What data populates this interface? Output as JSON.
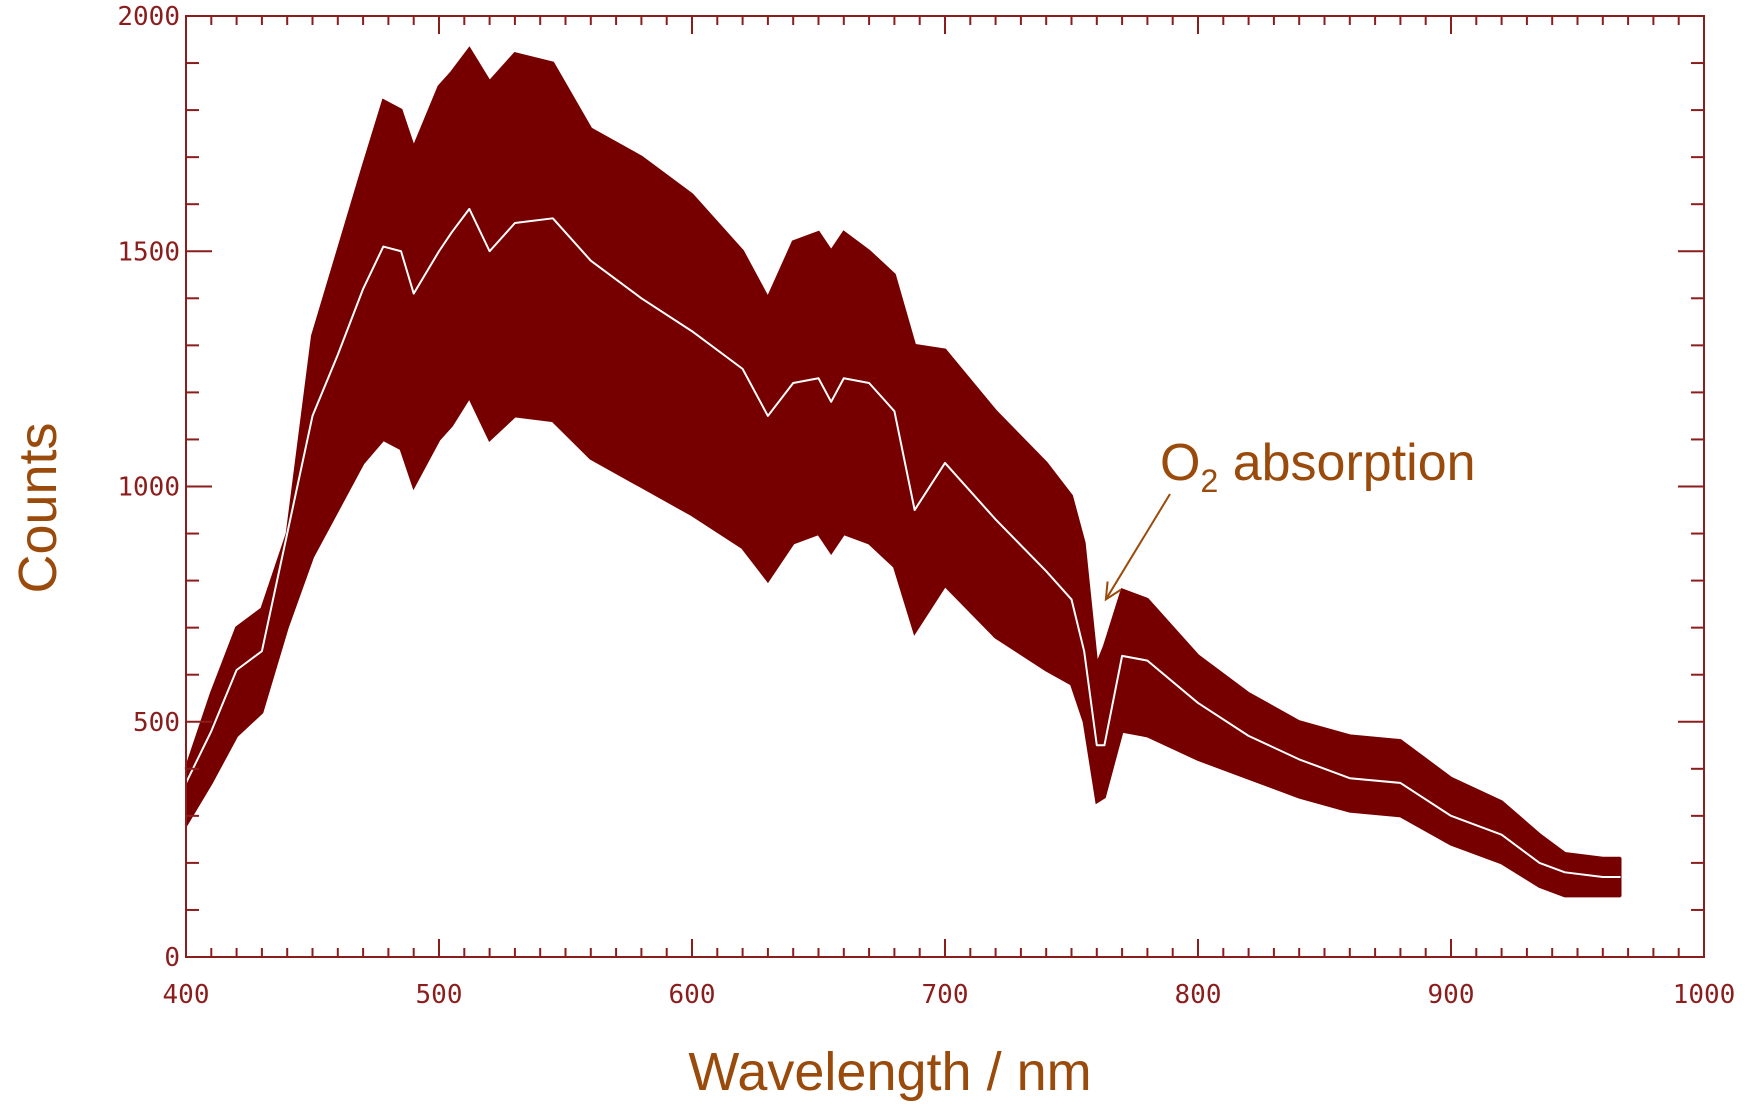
{
  "chart_data": {
    "type": "area",
    "title": "",
    "xlabel": "Wavelength / nm",
    "ylabel": "Counts",
    "xlim": [
      400,
      1000
    ],
    "ylim": [
      0,
      2000
    ],
    "x_ticks": [
      400,
      500,
      600,
      700,
      800,
      900,
      1000
    ],
    "y_ticks": [
      0,
      500,
      1000,
      1500,
      2000
    ],
    "x_tick_labels": [
      "400",
      "500",
      "600",
      "700",
      "800",
      "900",
      "1000"
    ],
    "y_tick_labels": [
      "0",
      "500",
      "1000",
      "1500",
      "2000"
    ],
    "x": [
      400,
      410,
      420,
      430,
      440,
      450,
      460,
      470,
      478,
      485,
      490,
      500,
      505,
      512,
      520,
      530,
      545,
      560,
      580,
      600,
      620,
      630,
      640,
      650,
      655,
      660,
      670,
      680,
      688,
      700,
      720,
      740,
      750,
      755,
      760,
      763,
      770,
      780,
      800,
      820,
      840,
      860,
      880,
      900,
      920,
      935,
      945,
      960,
      967
    ],
    "series": [
      {
        "values": [
          400,
          560,
          700,
          740,
          900,
          1320,
          1500,
          1680,
          1820,
          1800,
          1720,
          1850,
          1880,
          1930,
          1860,
          1920,
          1900,
          1760,
          1700,
          1620,
          1500,
          1400,
          1520,
          1540,
          1500,
          1540,
          1500,
          1450,
          1300,
          1290,
          1160,
          1050,
          980,
          880,
          620,
          660,
          780,
          760,
          640,
          560,
          500,
          470,
          460,
          380,
          330,
          260,
          220,
          210,
          210
        ]
      },
      {
        "values": [
          370,
          480,
          610,
          650,
          900,
          1150,
          1280,
          1420,
          1510,
          1500,
          1410,
          1500,
          1540,
          1590,
          1500,
          1560,
          1570,
          1480,
          1400,
          1330,
          1250,
          1150,
          1220,
          1230,
          1180,
          1230,
          1220,
          1160,
          950,
          1050,
          930,
          820,
          760,
          650,
          450,
          450,
          640,
          630,
          540,
          470,
          420,
          380,
          370,
          300,
          260,
          200,
          180,
          170,
          170
        ]
      },
      {
        "values": [
          280,
          370,
          470,
          520,
          700,
          850,
          950,
          1050,
          1100,
          1080,
          1000,
          1100,
          1130,
          1190,
          1100,
          1150,
          1140,
          1060,
          1000,
          940,
          870,
          800,
          880,
          900,
          860,
          900,
          880,
          830,
          690,
          790,
          680,
          610,
          580,
          500,
          330,
          340,
          480,
          470,
          420,
          380,
          340,
          310,
          300,
          240,
          200,
          150,
          130,
          130,
          130
        ]
      }
    ],
    "annotations": [
      {
        "text_main": "O",
        "text_sub": "2",
        "text_rest": " absorption",
        "arrow_x": 762,
        "arrow_y": 760
      }
    ],
    "grid": false,
    "legend": "none",
    "colors": {
      "band": "#760000",
      "mean": "#ffffff",
      "axis": "#8b1d1d",
      "label": "#9a4a0a",
      "annotation": "#9a4a0a"
    }
  }
}
